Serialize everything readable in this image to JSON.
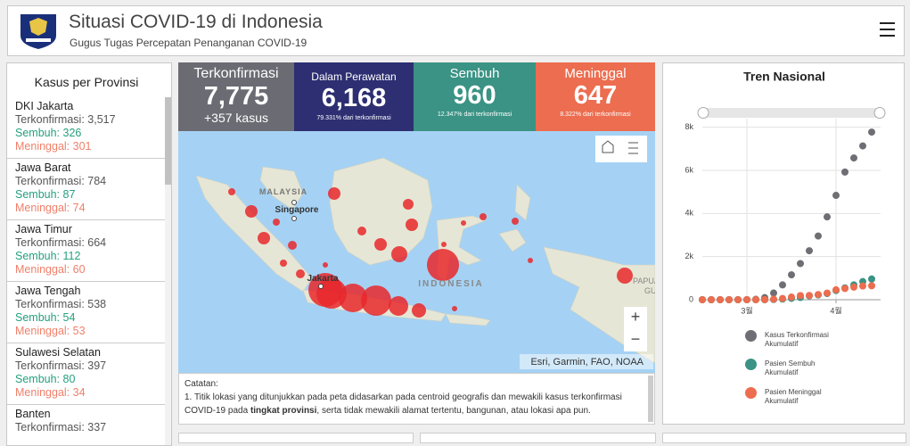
{
  "header": {
    "title": "Situasi COVID-19 di Indonesia",
    "subtitle": "Gugus Tugas Percepatan Penanganan COVID-19"
  },
  "provinces": {
    "title": "Kasus per Provinsi",
    "items": [
      {
        "name": "DKI Jakarta",
        "confirmed": "Terkonfirmasi: 3,517",
        "recovered": "Sembuh: 326",
        "deaths": "Meninggal: 301"
      },
      {
        "name": "Jawa Barat",
        "confirmed": "Terkonfirmasi: 784",
        "recovered": "Sembuh: 87",
        "deaths": "Meninggal: 74"
      },
      {
        "name": "Jawa Timur",
        "confirmed": "Terkonfirmasi: 664",
        "recovered": "Sembuh: 112",
        "deaths": "Meninggal: 60"
      },
      {
        "name": "Jawa Tengah",
        "confirmed": "Terkonfirmasi: 538",
        "recovered": "Sembuh: 54",
        "deaths": "Meninggal: 53"
      },
      {
        "name": "Sulawesi Selatan",
        "confirmed": "Terkonfirmasi: 397",
        "recovered": "Sembuh: 80",
        "deaths": "Meninggal: 34"
      },
      {
        "name": "Banten",
        "confirmed": "Terkonfirmasi: 337"
      }
    ]
  },
  "cards": [
    {
      "label": "Terkonfirmasi",
      "value": "7,775",
      "sub": "+357 kasus"
    },
    {
      "label": "Dalam Perawatan",
      "value": "6,168",
      "sub": "79.331% dari terkonfirmasi"
    },
    {
      "label": "Sembuh",
      "value": "960",
      "sub": "12.347% dari terkonfirmasi"
    },
    {
      "label": "Meninggal",
      "value": "647",
      "sub": "8.322% dari terkonfirmasi"
    }
  ],
  "map": {
    "labels": [
      "MALAYSIA",
      "Singapore",
      "Jakarta",
      "INDONESIA",
      "PAPUA",
      "GU"
    ],
    "attribution": "Esri, Garmin, FAO, NOAA",
    "zoom_in": "+",
    "zoom_out": "−"
  },
  "notes": {
    "title": "Catatan:",
    "text": [
      "1. Titik lokasi yang ditunjukkan pada peta didasarkan pada centroid geografis dan mewakili kasus terkonfirmasi COVID-19 pada ",
      "tingkat provinsi",
      ", serta tidak mewakili alamat tertentu, bangunan, atau lokasi apa pun."
    ]
  },
  "chart_data": {
    "type": "scatter",
    "title": "Tren Nasional",
    "x": [
      0,
      3,
      6,
      9,
      12,
      15,
      18,
      21,
      24,
      27,
      30,
      33,
      36,
      39,
      42,
      45,
      48,
      51,
      54,
      57
    ],
    "xlim": [
      0,
      60
    ],
    "xticks": [
      {
        "value": 15,
        "label": "3월"
      },
      {
        "value": 45,
        "label": "4월"
      }
    ],
    "ylim": [
      0,
      8400
    ],
    "yticks": [
      0,
      {
        "value": 2000,
        "label": "2k"
      },
      {
        "value": 4000,
        "label": "4k"
      },
      {
        "value": 6000,
        "label": "6k"
      },
      {
        "value": 8000,
        "label": "8k"
      }
    ],
    "grid": true,
    "series": [
      {
        "name": "Kasus Terkonfirmasi Akumulatif",
        "color": "#6e6e74",
        "values": [
          0,
          0,
          0,
          0,
          0,
          2,
          19,
          96,
          309,
          686,
          1155,
          1677,
          2273,
          2956,
          3842,
          4839,
          5923,
          6575,
          7135,
          7775
        ]
      },
      {
        "name": "Pasien Sembuh Akumulatif",
        "color": "#3a9384",
        "values": [
          0,
          0,
          0,
          0,
          0,
          0,
          0,
          0,
          11,
          30,
          64,
          103,
          181,
          222,
          286,
          426,
          548,
          686,
          842,
          960
        ]
      },
      {
        "name": "Pasien Meninggal Akumulatif",
        "color": "#ec6d4f",
        "values": [
          0,
          0,
          0,
          0,
          0,
          0,
          0,
          5,
          25,
          58,
          122,
          191,
          198,
          240,
          306,
          459,
          520,
          582,
          635,
          647
        ]
      }
    ]
  }
}
